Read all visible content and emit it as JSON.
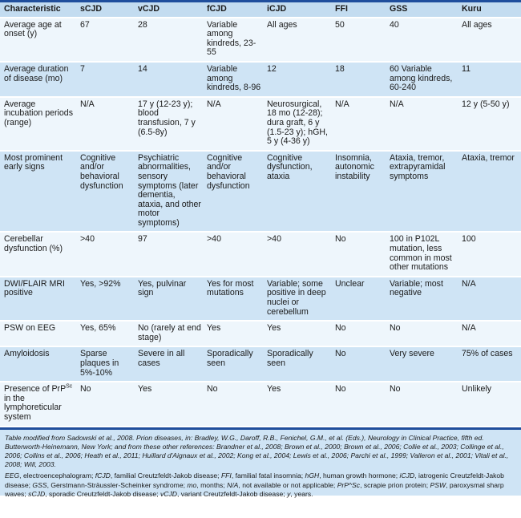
{
  "table": {
    "headers": [
      "Characteristic",
      "sCJD",
      "vCJD",
      "fCJD",
      "iCJD",
      "FFI",
      "GSS",
      "Kuru"
    ],
    "rows": [
      [
        "Average age at onset (y)",
        "67",
        "28",
        "Variable among kindreds, 23-55",
        "All ages",
        "50",
        "40",
        "All ages"
      ],
      [
        "Average duration of disease (mo)",
        "7",
        "14",
        "Variable among kindreds, 8-96",
        "12",
        "18",
        "60 Variable among kindreds, 60-240",
        "11"
      ],
      [
        "Average incubation periods (range)",
        "N/A",
        "17 y (12-23 y); blood transfusion, 7 y (6.5-8y)",
        "N/A",
        "Neurosurgical, 18 mo (12-28); dura graft, 6 y (1.5-23 y); hGH, 5 y (4-36 y)",
        "N/A",
        "N/A",
        "12 y (5-50 y)"
      ],
      [
        "Most prominent early signs",
        "Cognitive and/or behavioral dysfunction",
        "Psychiatric abnormalities, sensory symptoms (later dementia, ataxia, and other motor symptoms)",
        "Cognitive and/or behavioral dysfunction",
        "Cognitive dysfunction, ataxia",
        "Insomnia, autonomic instability",
        "Ataxia, tremor, extrapyramidal symptoms",
        "Ataxia, tremor"
      ],
      [
        "Cerebellar dysfunction (%)",
        ">40",
        "97",
        ">40",
        ">40",
        "No",
        "100 in P102L mutation, less common in most other mutations",
        "100"
      ],
      [
        "DWI/FLAIR MRI positive",
        "Yes, >92%",
        "Yes, pulvinar sign",
        "Yes for most mutations",
        "Variable; some positive in deep nuclei or cerebellum",
        "Unclear",
        "Variable; most negative",
        "N/A"
      ],
      [
        "PSW on EEG",
        "Yes, 65%",
        "No (rarely at end stage)",
        "Yes",
        "Yes",
        "No",
        "No",
        "N/A"
      ],
      [
        "Amyloidosis",
        "Sparse plaques in 5%-10%",
        "Severe in all cases",
        "Sporadically seen",
        "Sporadically seen",
        "No",
        "Very severe",
        "75% of cases"
      ],
      [
        "Presence of PrP^Sc in the lymphoreticular system",
        "No",
        "Yes",
        "No",
        "Yes",
        "No",
        "No",
        "Unlikely"
      ]
    ]
  },
  "footnotes": {
    "source": "Table modified from Sadowski et al., 2008. Prion diseases, in: Bradley, W.G., Daroff, R.B., Fenichel, G.M., et al. (Eds.), Neurology in Clinical Practice, fifth ed. Butterworth-Heinemann, New York; and from these other references: Brandner et al., 2008; Brown et al., 2000; Brown et al., 2006; Collie et al., 2003; Collinge et al., 2006; Collins et al., 2006; Heath et al., 2011; Huillard d'Aignaux et al., 2002; Kong et al., 2004; Lewis et al., 2006; Parchi et al., 1999; Valleron et al., 2001; Vitali et al., 2008; Will, 2003.",
    "abbreviations": [
      [
        "EEG",
        "electroencephalogram"
      ],
      [
        "fCJD",
        "familial Creutzfeldt-Jakob disease"
      ],
      [
        "FFI",
        "familial fatal insomnia"
      ],
      [
        "hGH",
        "human growth hormone"
      ],
      [
        "iCJD",
        "iatrogenic Creutzfeldt-Jakob disease"
      ],
      [
        "GSS",
        "Gerstmann-Sträussler-Scheinker syndrome"
      ],
      [
        "mo",
        "months"
      ],
      [
        "N/A",
        "not available or not applicable"
      ],
      [
        "PrP^Sc",
        "scrapie prion protein"
      ],
      [
        "PSW",
        "paroxysmal sharp waves"
      ],
      [
        "sCJD",
        "sporadic Creutzfeldt-Jakob disease"
      ],
      [
        "vCJD",
        "variant Creutzfeldt-Jakob disease"
      ],
      [
        "y",
        "years"
      ]
    ]
  },
  "colors": {
    "rule": "#1f4e9c",
    "header_bg": "#c3dcf0",
    "alt_row_bg": "#cfe4f5",
    "row_bg": "#eef6fc"
  }
}
